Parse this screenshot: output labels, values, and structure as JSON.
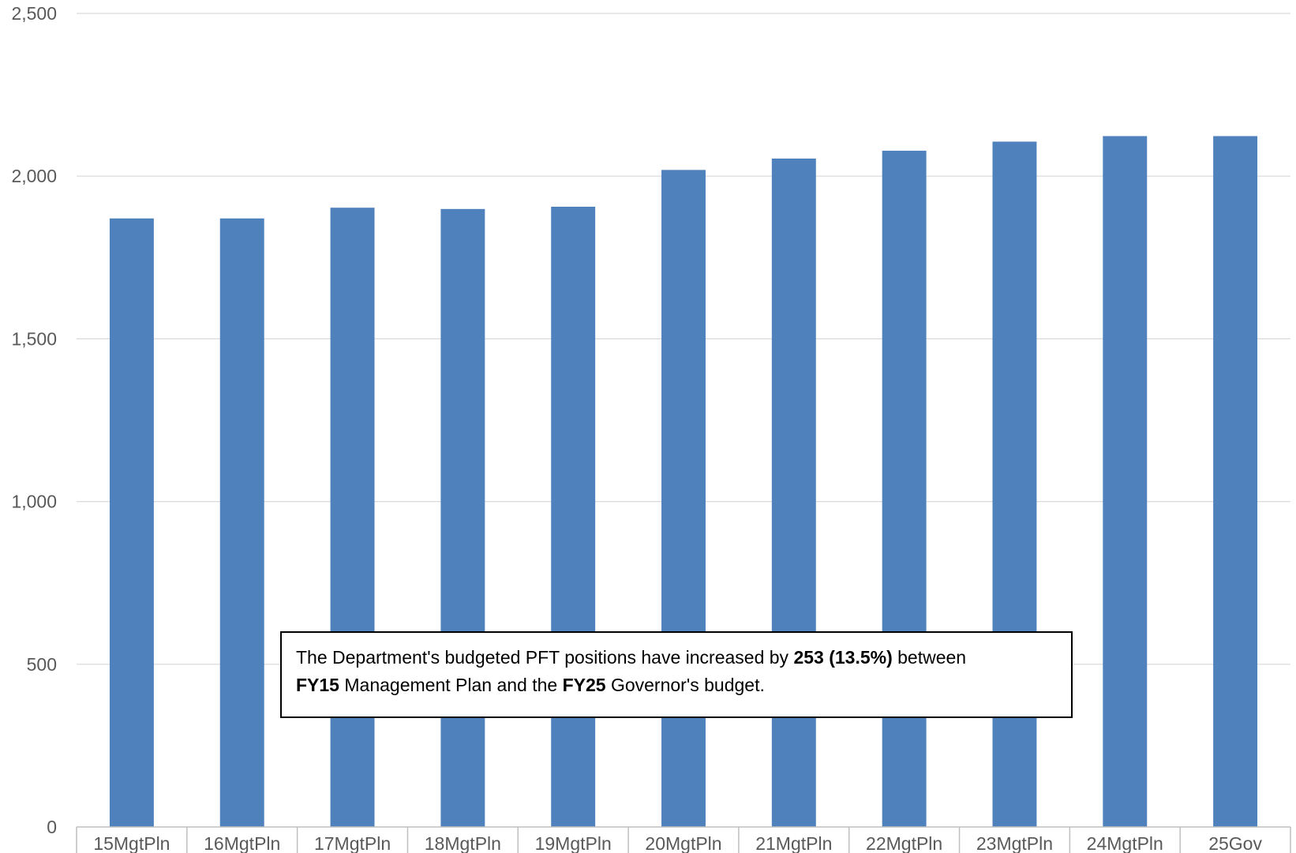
{
  "colors": {
    "bar": "#4f81bd",
    "grid": "#d9d9d9",
    "axis": "#bfbfbf",
    "text": "#595959"
  },
  "chart_data": {
    "type": "bar",
    "categories": [
      "15MgtPln",
      "16MgtPln",
      "17MgtPln",
      "18MgtPln",
      "19MgtPln",
      "20MgtPln",
      "21MgtPln",
      "22MgtPln",
      "23MgtPln",
      "24MgtPln",
      "25Gov"
    ],
    "values": [
      1870,
      1870,
      1903,
      1899,
      1906,
      2019,
      2054,
      2078,
      2106,
      2123,
      2123
    ],
    "ylim": [
      0,
      2500
    ],
    "yticks": [
      0,
      500,
      1000,
      1500,
      2000,
      2500
    ],
    "ytick_labels": [
      "0",
      "500",
      "1,000",
      "1,500",
      "2,000",
      "2,500"
    ],
    "grid": true,
    "legend": "none"
  },
  "annotation": {
    "part1": "The Department's budgeted PFT positions have increased by ",
    "part2_bold": "253 (13.5%)",
    "part3": " between",
    "part4_bold": "FY15",
    "part5": " Management Plan and the ",
    "part6_bold": "FY25",
    "part7": " Governor's budget."
  }
}
